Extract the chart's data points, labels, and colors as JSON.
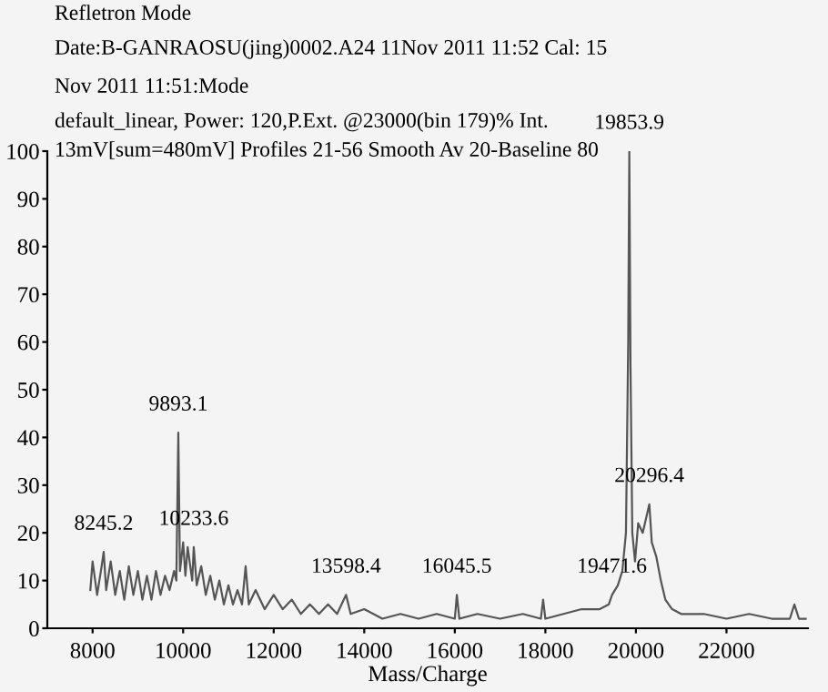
{
  "chart_data": {
    "type": "line",
    "xlabel": "Mass/Charge",
    "annotations": [
      "Refletron Mode",
      "Date:B-GANRAOSU(jing)0002.A24 11Nov 2011 11:52 Cal: 15",
      "Nov 2011 11:51:Mode",
      "default_linear, Power: 120,P.Ext. @23000(bin 179)% Int.",
      "13mV[sum=480mV] Profiles 21-56 Smooth Av 20-Baseline 80",
      {
        "text": "8245.2",
        "x": 8245.2,
        "y": 16
      },
      {
        "text": "9893.1",
        "x": 9893.1,
        "y": 41
      },
      {
        "text": "10233.6",
        "x": 10233.6,
        "y": 17
      },
      {
        "text": "13598.4",
        "x": 13598.4,
        "y": 7
      },
      {
        "text": "16045.5",
        "x": 16045.5,
        "y": 7
      },
      {
        "text": "19471.6",
        "x": 19471.6,
        "y": 7
      },
      {
        "text": "19853.9",
        "x": 19853.9,
        "y": 100
      },
      {
        "text": "20296.4",
        "x": 20296.4,
        "y": 26
      }
    ],
    "series": [
      {
        "color": "#555555",
        "x": [
          7950,
          8000,
          8100,
          8200,
          8245,
          8300,
          8400,
          8500,
          8600,
          8700,
          8800,
          8900,
          9000,
          9100,
          9200,
          9300,
          9400,
          9500,
          9600,
          9700,
          9800,
          9850,
          9893,
          9930,
          10000,
          10050,
          10100,
          10200,
          10234,
          10300,
          10400,
          10500,
          10600,
          10700,
          10800,
          10900,
          11000,
          11100,
          11200,
          11300,
          11380,
          11450,
          11600,
          11800,
          12000,
          12200,
          12400,
          12600,
          12800,
          13000,
          13200,
          13400,
          13598,
          13700,
          14000,
          14400,
          14800,
          15200,
          15600,
          16000,
          16045,
          16100,
          16500,
          17000,
          17500,
          17900,
          17950,
          18000,
          18400,
          18800,
          19200,
          19400,
          19472,
          19600,
          19700,
          19780,
          19830,
          19854,
          19880,
          19920,
          19980,
          20050,
          20150,
          20296,
          20350,
          20450,
          20550,
          20650,
          20800,
          21000,
          21500,
          22000,
          22500,
          23000,
          23400,
          23500,
          23600,
          23750
        ],
        "values": [
          8,
          14,
          7,
          13,
          16,
          8,
          14,
          7,
          12,
          6,
          13,
          7,
          12,
          6,
          11,
          6,
          12,
          7,
          11,
          8,
          12,
          10,
          41,
          12,
          18,
          11,
          17,
          10,
          17,
          9,
          13,
          7,
          11,
          6,
          10,
          5,
          9,
          5,
          8,
          5,
          13,
          5,
          8,
          4,
          7,
          4,
          6,
          3,
          5,
          3,
          5,
          3,
          7,
          3,
          4,
          2,
          3,
          2,
          3,
          2,
          7,
          2,
          3,
          2,
          3,
          2,
          6,
          2,
          3,
          4,
          4,
          5,
          7,
          9,
          12,
          20,
          60,
          100,
          55,
          20,
          14,
          22,
          20,
          26,
          18,
          15,
          10,
          6,
          4,
          3,
          3,
          2,
          3,
          2,
          2,
          5,
          2,
          2
        ]
      }
    ],
    "xlim": [
      7000,
      23800
    ],
    "ylim": [
      0,
      100
    ],
    "xticks": [
      8000,
      10000,
      12000,
      14000,
      16000,
      18000,
      20000,
      22000
    ],
    "yticks": [
      0,
      10,
      20,
      30,
      40,
      50,
      60,
      70,
      80,
      90,
      100
    ],
    "grid": false,
    "marker": "none",
    "line_style": "solid"
  }
}
